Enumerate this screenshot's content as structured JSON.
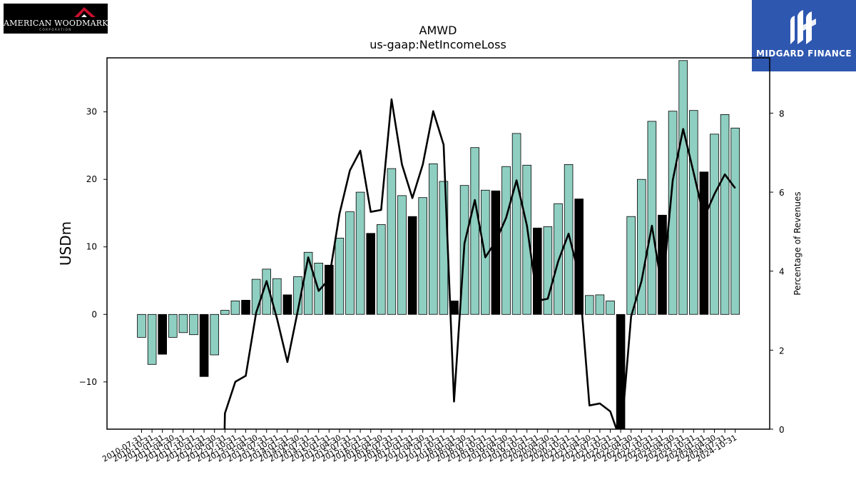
{
  "logos": {
    "left_text": "AMERICAN WOODMARK",
    "left_subtext": "CORPORATION",
    "right_text": "MIDGARD FINANCE"
  },
  "chart_data": {
    "type": "bar",
    "title": "AMWD",
    "subtitle": "us-gaap:NetIncomeLoss",
    "ylabel": "USDm",
    "y2label": "Percentage of Revenues",
    "ylim": [
      -17,
      38
    ],
    "y2lim": [
      0,
      9.4
    ],
    "yticks": [
      -10,
      0,
      10,
      20,
      30
    ],
    "y2ticks": [
      0,
      2,
      4,
      6,
      8
    ],
    "grid": false,
    "colors": {
      "bar_teal": "#8ecfc1",
      "bar_black": "#000000",
      "line": "#000000"
    },
    "categories": [
      "2010-07-31",
      "2010-10-31",
      "2011-01-31",
      "2011-04-30",
      "2011-07-31",
      "2011-10-31",
      "2012-01-31",
      "2012-04-30",
      "2012-07-31",
      "2012-10-31",
      "2013-01-31",
      "2013-04-30",
      "2013-07-31",
      "2013-10-31",
      "2014-01-31",
      "2014-04-30",
      "2014-07-31",
      "2014-10-31",
      "2015-01-31",
      "2015-04-30",
      "2015-07-31",
      "2015-10-31",
      "2016-01-31",
      "2016-04-30",
      "2016-07-31",
      "2016-10-31",
      "2017-01-31",
      "2017-04-30",
      "2017-07-31",
      "2017-10-31",
      "2018-01-31",
      "2018-04-30",
      "2018-07-31",
      "2018-10-31",
      "2019-01-31",
      "2019-04-30",
      "2019-07-31",
      "2019-10-31",
      "2020-01-31",
      "2020-04-30",
      "2020-07-31",
      "2020-10-31",
      "2021-01-31",
      "2021-04-30",
      "2021-07-31",
      "2021-10-31",
      "2022-01-31",
      "2022-04-30",
      "2022-07-31",
      "2022-10-31",
      "2023-01-31",
      "2023-04-30",
      "2023-07-31",
      "2023-10-31",
      "2024-01-31",
      "2024-04-30",
      "2024-07-31",
      "2024-10-31"
    ],
    "xtick_labels": [
      "2010-07-31",
      "2010-10-31",
      "2011-01-31",
      "2011-04-30",
      "2011-07-31",
      "2011-10-31",
      "2012-01-31",
      "2012-04-30",
      "2012-07-31",
      "2012-10-31",
      "2013-01-31",
      "2013-04-30",
      "2013-07-31",
      "2013-10-31",
      "2014-01-31",
      "2014-04-30",
      "2014-07-31",
      "2014-10-31",
      "2015-01-31",
      "2015-04-30",
      "2015-07-31",
      "2015-10-31",
      "2016-01-31",
      "2016-04-30",
      "2016-07-31",
      "2016-10-31",
      "2017-01-31",
      "2017-04-30",
      "2017-07-31",
      "2017-10-31",
      "2018-01-31",
      "2018-04-30",
      "2018-07-31",
      "2018-10-31",
      "2019-01-31",
      "2019-04-30",
      "2019-07-31",
      "2019-10-31",
      "2020-01-31",
      "2020-04-30",
      "2020-07-31",
      "2020-10-31",
      "2021-01-31",
      "2021-04-30",
      "2021-07-31",
      "2021-10-31",
      "2022-01-31",
      "2022-04-30",
      "2022-07-31",
      "2022-10-31",
      "2023-01-31",
      "2023-04-30",
      "2023-07-31",
      "2023-10-31",
      "2024-01-31",
      "2024-04-30",
      "2024-07-31",
      "2024-10-31"
    ],
    "values": [
      -3.4,
      -7.4,
      -5.9,
      -3.4,
      -2.7,
      -3.0,
      -9.2,
      -6.0,
      0.6,
      2.0,
      2.1,
      5.2,
      6.7,
      5.3,
      2.9,
      5.6,
      9.2,
      7.6,
      7.3,
      11.3,
      15.2,
      18.1,
      12.0,
      13.3,
      21.6,
      17.6,
      14.5,
      17.3,
      22.3,
      19.7,
      2.0,
      19.1,
      24.7,
      18.4,
      18.3,
      21.9,
      26.8,
      22.1,
      12.8,
      13.0,
      16.4,
      22.2,
      17.1,
      2.8,
      2.9,
      2.0,
      -17.0,
      14.5,
      20.0,
      28.6,
      14.7,
      30.1,
      37.6,
      30.2,
      21.1,
      26.7,
      29.6,
      27.6
    ],
    "highlight": [
      false,
      false,
      true,
      false,
      false,
      false,
      true,
      false,
      false,
      false,
      true,
      false,
      false,
      false,
      true,
      false,
      false,
      false,
      true,
      false,
      false,
      false,
      true,
      false,
      false,
      false,
      true,
      false,
      false,
      false,
      true,
      false,
      false,
      false,
      true,
      false,
      false,
      false,
      true,
      false,
      false,
      false,
      true,
      false,
      false,
      false,
      true,
      false,
      false,
      false,
      true,
      false,
      false,
      false,
      true,
      false,
      false,
      false
    ],
    "percent_of_revenues": [
      null,
      null,
      null,
      null,
      null,
      null,
      null,
      null,
      0.4,
      1.2,
      1.35,
      2.95,
      3.75,
      2.8,
      1.7,
      3.0,
      4.35,
      3.5,
      3.8,
      5.45,
      6.55,
      7.05,
      5.5,
      5.55,
      8.35,
      6.7,
      5.85,
      6.7,
      8.05,
      7.2,
      0.7,
      4.7,
      5.8,
      4.35,
      4.75,
      5.35,
      6.3,
      5.15,
      3.25,
      3.3,
      4.25,
      4.95,
      3.9,
      0.6,
      0.65,
      0.45,
      null,
      2.85,
      3.75,
      5.15,
      3.5,
      6.3,
      7.6,
      6.5,
      5.35,
      5.95,
      6.45,
      6.1
    ]
  }
}
